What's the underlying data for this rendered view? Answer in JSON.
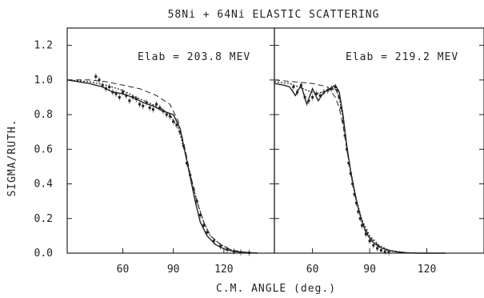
{
  "chart_data": {
    "type": "line",
    "title": "58Ni + 64Ni ELASTIC SCATTERING",
    "xlabel": "C.M. ANGLE (deg.)",
    "ylabel": "SIGMA/RUTH.",
    "ylim": [
      0.0,
      1.3
    ],
    "yticks": [
      "0.0",
      "0.2",
      "0.4",
      "0.6",
      "0.8",
      "1.0",
      "1.2"
    ],
    "panels": [
      {
        "annotation": "Elab = 203.8 MEV",
        "xlim": [
          27,
          150
        ],
        "xticks": [
          "60",
          "90",
          "120"
        ],
        "series": [
          {
            "style": "solid",
            "x": [
              27,
              40,
              48,
              54,
              60,
              66,
              72,
              78,
              84,
              90,
              94,
              97,
              100,
              103,
              106,
              110,
              115,
              120,
              125,
              130,
              135,
              140
            ],
            "y": [
              1.0,
              0.98,
              0.96,
              0.93,
              0.92,
              0.9,
              0.87,
              0.85,
              0.82,
              0.8,
              0.72,
              0.58,
              0.44,
              0.3,
              0.18,
              0.1,
              0.05,
              0.025,
              0.012,
              0.005,
              0.002,
              0.0
            ]
          },
          {
            "style": "dashed",
            "x": [
              27,
              40,
              50,
              60,
              70,
              80,
              88,
              93,
              97,
              100,
              104,
              108,
              112,
              118,
              124,
              130,
              140
            ],
            "y": [
              1.0,
              1.0,
              0.99,
              0.97,
              0.95,
              0.91,
              0.86,
              0.76,
              0.6,
              0.46,
              0.3,
              0.18,
              0.1,
              0.05,
              0.02,
              0.008,
              0.0
            ]
          },
          {
            "style": "dotted",
            "x": [
              27,
              40,
              50,
              60,
              68,
              75,
              82,
              88,
              93,
              97,
              100,
              104,
              108,
              112,
              118,
              124,
              130,
              140
            ],
            "y": [
              1.0,
              0.99,
              0.97,
              0.94,
              0.9,
              0.87,
              0.84,
              0.8,
              0.72,
              0.58,
              0.45,
              0.3,
              0.18,
              0.1,
              0.05,
              0.02,
              0.008,
              0.0
            ]
          },
          {
            "style": "data",
            "x": [
              44,
              46,
              48,
              50,
              52,
              54,
              56,
              58,
              60,
              62,
              64,
              66,
              68,
              70,
              72,
              74,
              76,
              78,
              80,
              82,
              84,
              86,
              88,
              90,
              92,
              94,
              96,
              98,
              100,
              102,
              104,
              106,
              108,
              110,
              114,
              118,
              122,
              126,
              130,
              135
            ],
            "y": [
              1.02,
              1.0,
              0.97,
              0.95,
              0.96,
              0.93,
              0.92,
              0.9,
              0.93,
              0.91,
              0.88,
              0.9,
              0.89,
              0.86,
              0.85,
              0.87,
              0.84,
              0.83,
              0.86,
              0.84,
              0.82,
              0.8,
              0.79,
              0.76,
              0.74,
              0.7,
              0.62,
              0.52,
              0.45,
              0.37,
              0.3,
              0.22,
              0.16,
              0.12,
              0.07,
              0.04,
              0.02,
              0.01,
              0.005,
              0.002
            ]
          }
        ]
      },
      {
        "annotation": "Elab = 219.2 MEV",
        "xlim": [
          40,
          150
        ],
        "xticks": [
          "60",
          "90",
          "120"
        ],
        "series": [
          {
            "style": "solid",
            "x": [
              40,
              45,
              48,
              51,
              54,
              57,
              60,
              63,
              66,
              69,
              72,
              74,
              76,
              78,
              80,
              82,
              84,
              86,
              88,
              91,
              95,
              100,
              105,
              110,
              115,
              120,
              130
            ],
            "y": [
              0.98,
              0.97,
              0.96,
              0.91,
              0.97,
              0.86,
              0.95,
              0.88,
              0.93,
              0.95,
              0.97,
              0.93,
              0.8,
              0.62,
              0.47,
              0.36,
              0.26,
              0.18,
              0.12,
              0.07,
              0.035,
              0.015,
              0.006,
              0.002,
              0.0,
              0.0,
              0.0
            ]
          },
          {
            "style": "dashed",
            "x": [
              40,
              50,
              60,
              68,
              72,
              74,
              76,
              78,
              80,
              83,
              86,
              90,
              95,
              100,
              108,
              115,
              125
            ],
            "y": [
              1.0,
              0.99,
              0.98,
              0.96,
              0.9,
              0.84,
              0.74,
              0.6,
              0.46,
              0.3,
              0.18,
              0.09,
              0.04,
              0.015,
              0.004,
              0.0,
              0.0
            ]
          },
          {
            "style": "dotted",
            "x": [
              40,
              48,
              55,
              62,
              68,
              72,
              74,
              76,
              78,
              80,
              83,
              86,
              90,
              95,
              100,
              108,
              115,
              125
            ],
            "y": [
              0.99,
              0.98,
              0.95,
              0.92,
              0.94,
              0.95,
              0.9,
              0.78,
              0.62,
              0.48,
              0.31,
              0.19,
              0.1,
              0.045,
              0.017,
              0.004,
              0.0,
              0.0
            ]
          },
          {
            "style": "data",
            "x": [
              50,
              52,
              54,
              56,
              58,
              60,
              62,
              64,
              66,
              68,
              70,
              72,
              73,
              74,
              75,
              76,
              77,
              78,
              79,
              80,
              81,
              82,
              83,
              84,
              85,
              86,
              88,
              90,
              92,
              94,
              96,
              98,
              100
            ],
            "y": [
              0.96,
              0.93,
              0.97,
              0.9,
              0.88,
              0.9,
              0.92,
              0.91,
              0.93,
              0.94,
              0.95,
              0.96,
              0.94,
              0.9,
              0.84,
              0.76,
              0.68,
              0.6,
              0.52,
              0.46,
              0.4,
              0.34,
              0.29,
              0.24,
              0.2,
              0.16,
              0.11,
              0.07,
              0.045,
              0.028,
              0.016,
              0.009,
              0.005
            ]
          }
        ]
      }
    ]
  }
}
